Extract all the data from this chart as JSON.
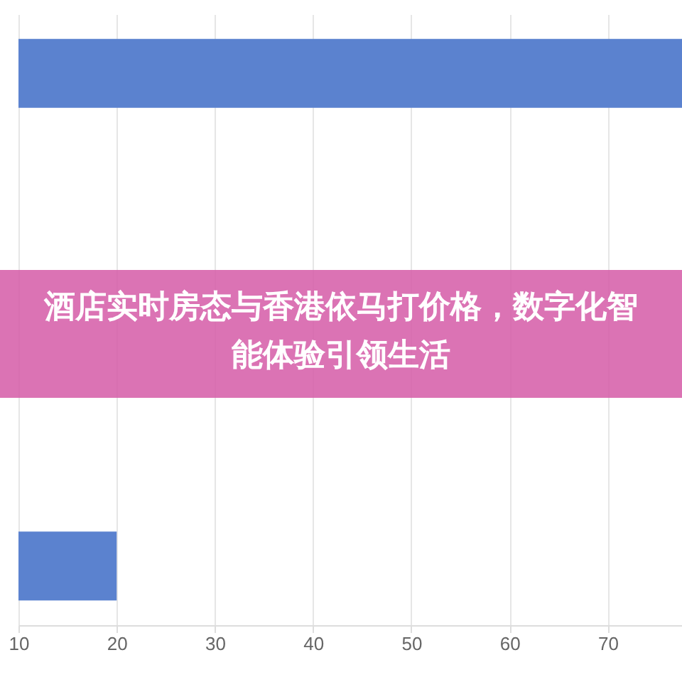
{
  "chart_data": {
    "type": "bar",
    "orientation": "horizontal",
    "title": "酒店实时房态与香港依马打价格，数字化智能体验引领生活",
    "categories": [
      null,
      null
    ],
    "values": [
      78,
      20
    ],
    "color": "#5b82cf",
    "xlim": [
      10,
      78
    ],
    "xticks": [
      10,
      20,
      30,
      40,
      50,
      60,
      70
    ],
    "grid": "x",
    "tick_labels": "x"
  }
}
